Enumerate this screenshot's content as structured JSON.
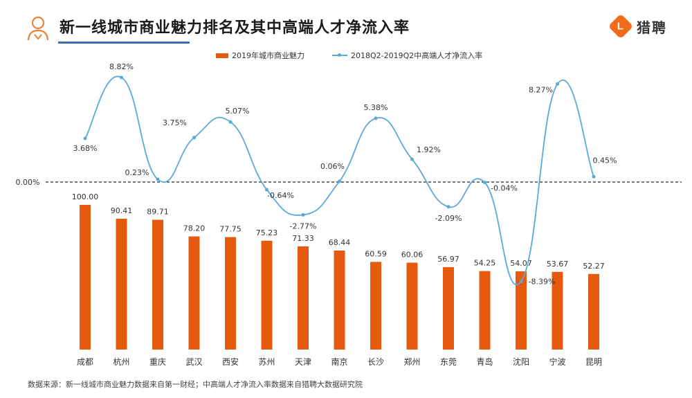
{
  "header": {
    "title": "新一线城市商业魅力排名及其中高端人才净流入率",
    "brand": "猎聘",
    "brand_letter": "L"
  },
  "legend": {
    "bar_label": "2019年城市商业魅力",
    "line_label": "2018Q2-2019Q2中高端人才净流入率"
  },
  "source": "数据来源：新一线城市商业魅力数据来自第一财经；中高端人才净流入率数据来自猎聘大数据研究院",
  "colors": {
    "bar": "#e55a0e",
    "line": "#5aaad6",
    "accent": "#f26a1b"
  },
  "chart_data": {
    "type": "bar+line",
    "categories": [
      "成都",
      "杭州",
      "重庆",
      "武汉",
      "西安",
      "苏州",
      "天津",
      "南京",
      "长沙",
      "郑州",
      "东莞",
      "青岛",
      "沈阳",
      "宁波",
      "昆明"
    ],
    "series": [
      {
        "name": "2019年城市商业魅力",
        "type": "bar",
        "values": [
          100.0,
          90.41,
          89.71,
          78.2,
          77.75,
          75.23,
          71.33,
          68.44,
          60.59,
          60.06,
          56.97,
          54.25,
          54.07,
          53.67,
          52.27
        ],
        "labels": [
          "100.00",
          "90.41",
          "89.71",
          "78.20",
          "77.75",
          "75.23",
          "71.33",
          "68.44",
          "60.59",
          "60.06",
          "56.97",
          "54.25",
          "54.07",
          "53.67",
          "52.27"
        ]
      },
      {
        "name": "2018Q2-2019Q2中高端人才净流入率",
        "type": "line",
        "values": [
          3.68,
          8.82,
          0.23,
          3.75,
          5.07,
          -0.64,
          -2.77,
          0.06,
          5.38,
          1.92,
          -2.09,
          -0.04,
          -8.39,
          8.27,
          0.45
        ],
        "labels": [
          "3.68%",
          "8.82%",
          "0.23%",
          "3.75%",
          "5.07%",
          "-0.64%",
          "-2.77%",
          "0.06%",
          "5.38%",
          "1.92%",
          "-2.09%",
          "-0.04%",
          "-8.39%",
          "8.27%",
          "0.45%"
        ]
      }
    ],
    "zero_label": "0.00%",
    "legend_position": "top"
  }
}
